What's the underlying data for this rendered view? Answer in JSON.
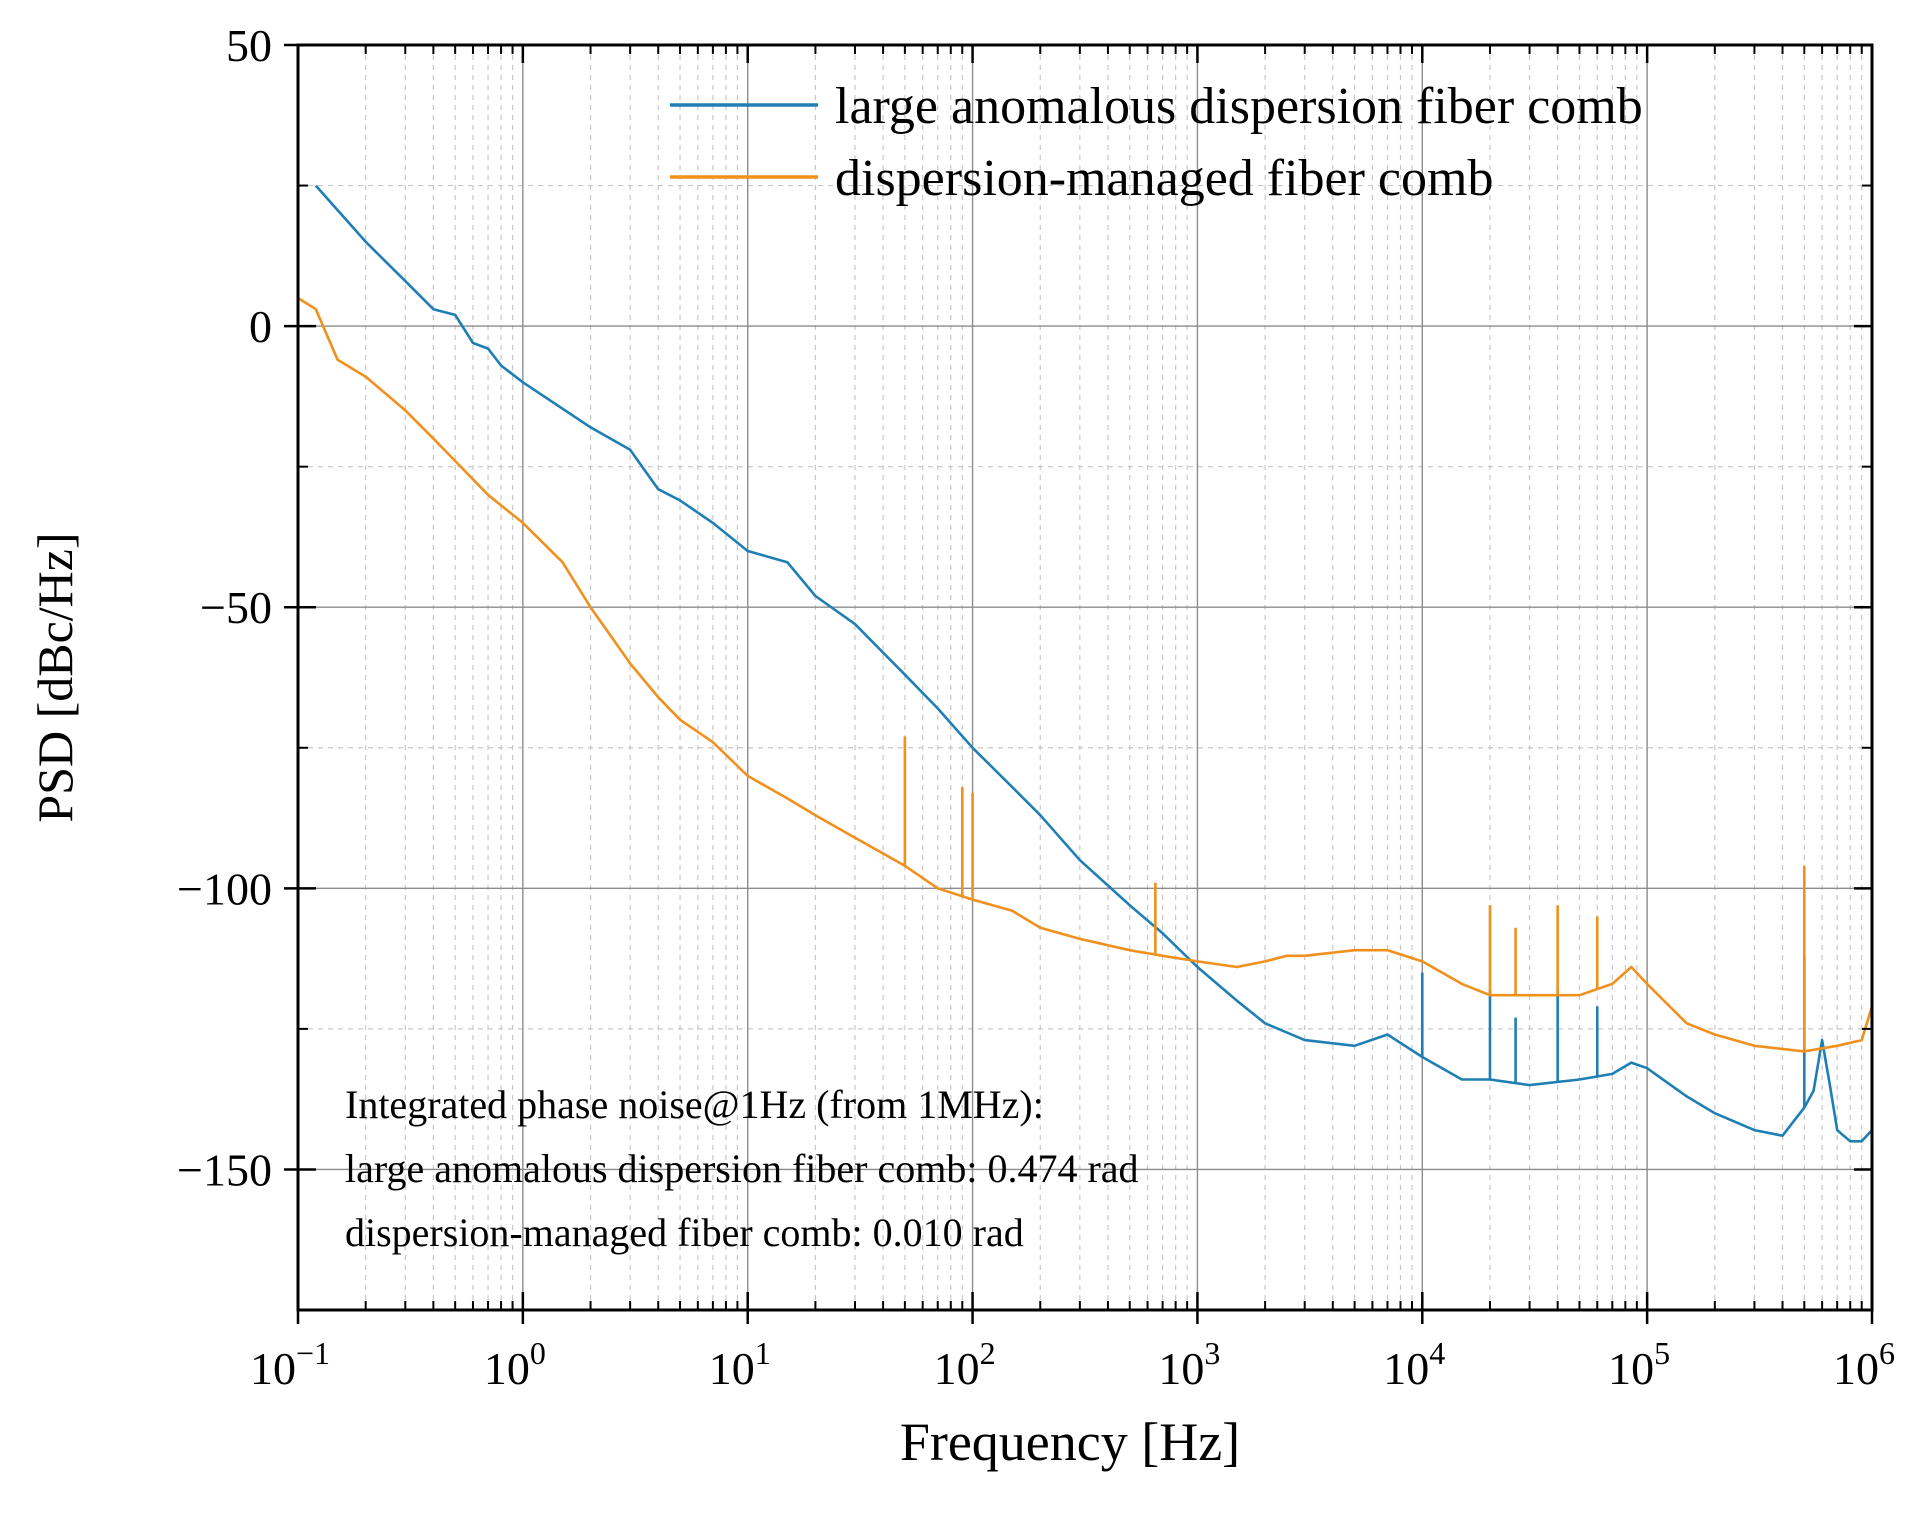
{
  "chart_data": {
    "type": "line",
    "title": "",
    "xlabel": "Frequency [Hz]",
    "ylabel": "PSD [dBc/Hz]",
    "x_scale": "log",
    "xlim": [
      0.1,
      1000000
    ],
    "ylim": [
      -175,
      50
    ],
    "grid": true,
    "legend_position": "top-right",
    "x_ticks": [
      {
        "value": 0.1,
        "base": "10",
        "exp": "−1"
      },
      {
        "value": 1,
        "base": "10",
        "exp": "0"
      },
      {
        "value": 10,
        "base": "10",
        "exp": "1"
      },
      {
        "value": 100,
        "base": "10",
        "exp": "2"
      },
      {
        "value": 1000,
        "base": "10",
        "exp": "3"
      },
      {
        "value": 10000,
        "base": "10",
        "exp": "4"
      },
      {
        "value": 100000,
        "base": "10",
        "exp": "5"
      },
      {
        "value": 1000000,
        "base": "10",
        "exp": "6"
      }
    ],
    "y_ticks": [
      {
        "value": 50,
        "label": "50"
      },
      {
        "value": 0,
        "label": "0"
      },
      {
        "value": -50,
        "label": "−50"
      },
      {
        "value": -100,
        "label": "−100"
      },
      {
        "value": -150,
        "label": "−150"
      }
    ],
    "series": [
      {
        "name": "large anomalous dispersion fiber comb",
        "color": "#1f7fb4",
        "x": [
          0.12,
          0.2,
          0.3,
          0.4,
          0.5,
          0.6,
          0.7,
          0.8,
          1,
          2,
          3,
          4,
          5,
          7,
          10,
          15,
          20,
          30,
          50,
          70,
          100,
          150,
          200,
          300,
          500,
          700,
          1000,
          1500,
          2000,
          3000,
          5000,
          7000,
          10000,
          15000,
          20000,
          30000,
          50000,
          70000,
          85000,
          100000,
          150000,
          200000,
          300000,
          400000,
          500000,
          550000,
          600000,
          650000,
          700000,
          800000,
          900000,
          1000000
        ],
        "y": [
          25,
          15,
          8,
          3,
          2,
          -3,
          -4,
          -7,
          -10,
          -18,
          -22,
          -29,
          -31,
          -35,
          -40,
          -42,
          -48,
          -53,
          -62,
          -68,
          -75,
          -82,
          -87,
          -95,
          -103,
          -108,
          -114,
          -120,
          -124,
          -127,
          -128,
          -126,
          -130,
          -134,
          -134,
          -135,
          -134,
          -133,
          -131,
          -132,
          -137,
          -140,
          -143,
          -144,
          -139,
          -136,
          -127,
          -135,
          -143,
          -145,
          -145,
          -143
        ],
        "spikes": [
          {
            "x": 10000,
            "y": -115
          },
          {
            "x": 20000,
            "y": -118
          },
          {
            "x": 26000,
            "y": -123
          },
          {
            "x": 40000,
            "y": -118
          },
          {
            "x": 60000,
            "y": -121
          },
          {
            "x": 500000,
            "y": -112
          }
        ]
      },
      {
        "name": "dispersion-managed fiber comb",
        "color": "#f0901e",
        "x": [
          0.1,
          0.12,
          0.15,
          0.2,
          0.3,
          0.4,
          0.5,
          0.7,
          1,
          1.5,
          2,
          3,
          4,
          5,
          7,
          10,
          15,
          20,
          30,
          50,
          70,
          100,
          150,
          200,
          300,
          500,
          700,
          1000,
          1500,
          2000,
          2500,
          3000,
          5000,
          7000,
          10000,
          15000,
          20000,
          30000,
          50000,
          70000,
          85000,
          100000,
          150000,
          200000,
          300000,
          500000,
          700000,
          900000,
          1000000
        ],
        "y": [
          5,
          3,
          -6,
          -9,
          -15,
          -20,
          -24,
          -30,
          -35,
          -42,
          -50,
          -60,
          -66,
          -70,
          -74,
          -80,
          -84,
          -87,
          -91,
          -96,
          -100,
          -102,
          -104,
          -107,
          -109,
          -111,
          -112,
          -113,
          -114,
          -113,
          -112,
          -112,
          -111,
          -111,
          -113,
          -117,
          -119,
          -119,
          -119,
          -117,
          -114,
          -117,
          -124,
          -126,
          -128,
          -129,
          -128,
          -127,
          -121
        ],
        "spikes": [
          {
            "x": 50,
            "y": -73
          },
          {
            "x": 90,
            "y": -82
          },
          {
            "x": 100,
            "y": -83
          },
          {
            "x": 650,
            "y": -99
          },
          {
            "x": 20000,
            "y": -103
          },
          {
            "x": 26000,
            "y": -107
          },
          {
            "x": 40000,
            "y": -103
          },
          {
            "x": 60000,
            "y": -105
          },
          {
            "x": 500000,
            "y": -96
          }
        ]
      }
    ],
    "annotation_lines": [
      "Integrated phase noise@1Hz (from 1MHz):",
      "large anomalous dispersion fiber comb: 0.474 rad",
      "dispersion-managed fiber comb: 0.010 rad"
    ]
  }
}
